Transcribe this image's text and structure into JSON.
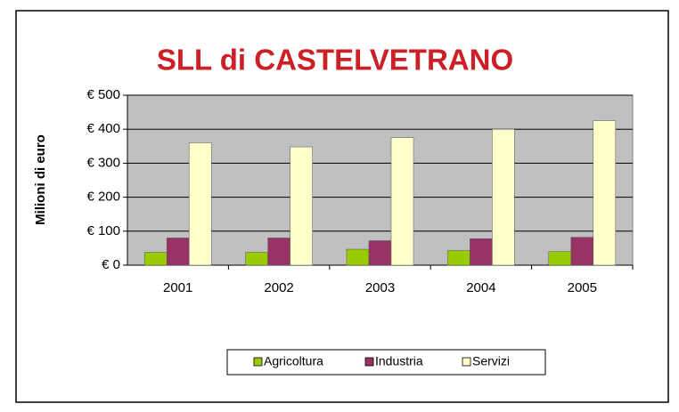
{
  "chart_data": {
    "type": "bar",
    "title": "SLL di CASTELVETRANO",
    "y_label": "Milioni di euro",
    "categories": [
      "2001",
      "2002",
      "2003",
      "2004",
      "2005"
    ],
    "series": [
      {
        "name": "Agricoltura",
        "color": "#99cc00",
        "values": [
          38,
          38,
          47,
          43,
          40
        ]
      },
      {
        "name": "Industria",
        "color": "#993366",
        "values": [
          80,
          80,
          72,
          78,
          82
        ]
      },
      {
        "name": "Servizi",
        "color": "#ffffcc",
        "values": [
          360,
          348,
          375,
          400,
          425
        ]
      }
    ],
    "ylim": [
      0,
      500
    ],
    "yticks": [
      {
        "value": 0,
        "label": "€ 0"
      },
      {
        "value": 100,
        "label": "€ 100"
      },
      {
        "value": 200,
        "label": "€ 200"
      },
      {
        "value": 300,
        "label": "€ 300"
      },
      {
        "value": 400,
        "label": "€ 400"
      },
      {
        "value": 500,
        "label": "€ 500"
      }
    ],
    "grid": true,
    "legend": "bottom"
  }
}
